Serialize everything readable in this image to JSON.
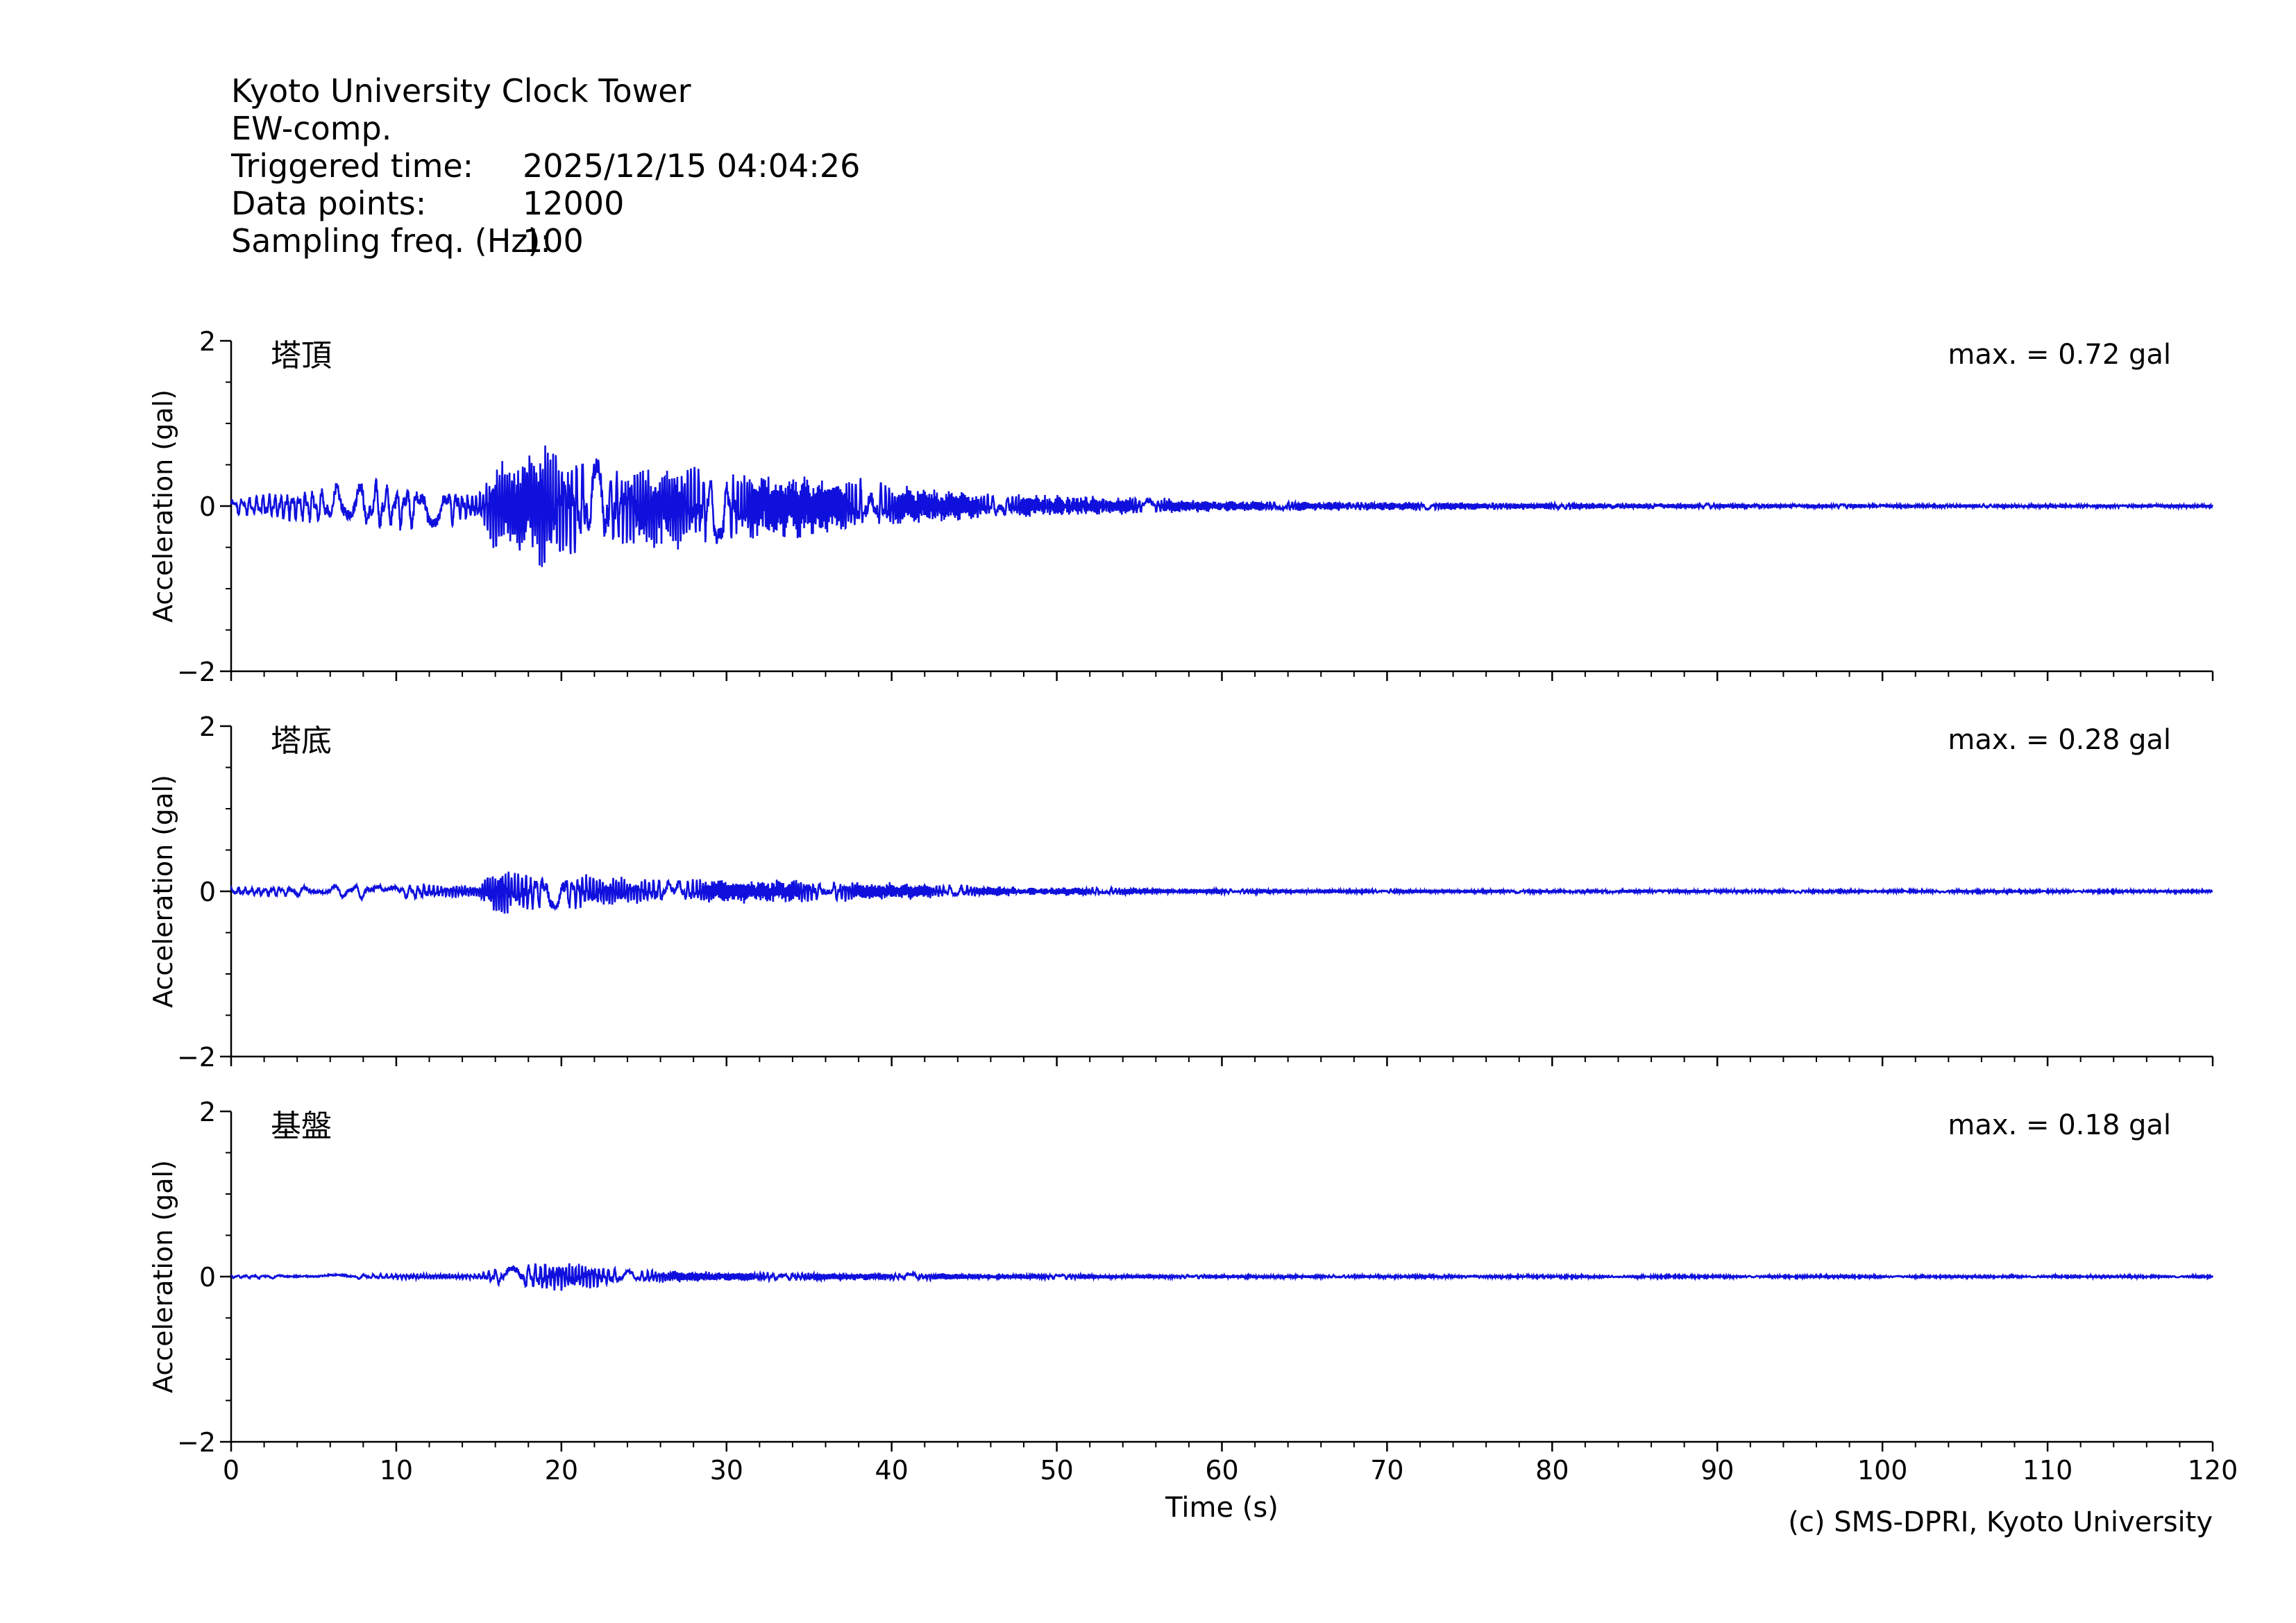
{
  "header": {
    "station": "Kyoto University Clock Tower",
    "component": "EW-comp.",
    "triggered_label": "Triggered time:",
    "triggered_value": "2025/12/15 04:04:26",
    "points_label": "Data points:",
    "points_value": "12000",
    "freq_label": "Sampling freq. (Hz):",
    "freq_value": "100"
  },
  "credit": "(c) SMS-DPRI, Kyoto University",
  "colors": {
    "trace": "#1010dd",
    "axis": "#000000"
  },
  "chart_data": [
    {
      "type": "line",
      "panel_label": "塔頂",
      "max_text": "max. = 0.72 gal",
      "ylabel": "Acceleration (gal)",
      "xlabel": "",
      "xlim": [
        0,
        120
      ],
      "ylim": [
        -2,
        2
      ],
      "x_ticks": [
        0,
        10,
        20,
        30,
        40,
        50,
        60,
        70,
        80,
        90,
        100,
        110,
        120
      ],
      "y_ticks": [
        2,
        0,
        -2
      ],
      "y_tick_labels": [
        "2",
        "0",
        "−2"
      ],
      "envelope": {
        "t": [
          0,
          2,
          5,
          8,
          12,
          15,
          16,
          17,
          19,
          21,
          24,
          27,
          30,
          34,
          37,
          40,
          43,
          46,
          50,
          55,
          60,
          70,
          80,
          90,
          100,
          110,
          120
        ],
        "amp": [
          0.1,
          0.15,
          0.2,
          0.3,
          0.27,
          0.15,
          0.5,
          0.55,
          0.72,
          0.55,
          0.45,
          0.5,
          0.4,
          0.35,
          0.33,
          0.25,
          0.18,
          0.14,
          0.12,
          0.1,
          0.06,
          0.05,
          0.04,
          0.03,
          0.025,
          0.02,
          0.02
        ]
      }
    },
    {
      "type": "line",
      "panel_label": "塔底",
      "max_text": "max. = 0.28 gal",
      "ylabel": "Acceleration (gal)",
      "xlabel": "",
      "xlim": [
        0,
        120
      ],
      "ylim": [
        -2,
        2
      ],
      "x_ticks": [
        0,
        10,
        20,
        30,
        40,
        50,
        60,
        70,
        80,
        90,
        100,
        110,
        120
      ],
      "y_ticks": [
        2,
        0,
        -2
      ],
      "y_tick_labels": [
        "2",
        "0",
        "−2"
      ],
      "envelope": {
        "t": [
          0,
          5,
          8,
          12,
          15,
          16,
          18,
          21,
          24,
          28,
          32,
          36,
          40,
          45,
          50,
          55,
          60,
          70,
          80,
          90,
          100,
          110,
          120
        ],
        "amp": [
          0.04,
          0.07,
          0.1,
          0.09,
          0.06,
          0.28,
          0.22,
          0.2,
          0.15,
          0.14,
          0.13,
          0.12,
          0.1,
          0.06,
          0.05,
          0.04,
          0.03,
          0.025,
          0.02,
          0.02,
          0.015,
          0.015,
          0.01
        ]
      }
    },
    {
      "type": "line",
      "panel_label": "基盤",
      "max_text": "max. = 0.18 gal",
      "ylabel": "Acceleration (gal)",
      "xlabel": "Time (s)",
      "xlim": [
        0,
        120
      ],
      "ylim": [
        -2,
        2
      ],
      "x_ticks": [
        0,
        10,
        20,
        30,
        40,
        50,
        60,
        70,
        80,
        90,
        100,
        110,
        120
      ],
      "x_tick_labels": [
        "0",
        "10",
        "20",
        "30",
        "40",
        "50",
        "60",
        "70",
        "80",
        "90",
        "100",
        "110",
        "120"
      ],
      "y_ticks": [
        2,
        0,
        -2
      ],
      "y_tick_labels": [
        "2",
        "0",
        "−2"
      ],
      "envelope": {
        "t": [
          0,
          10,
          15,
          16,
          19,
          21,
          24,
          30,
          40,
          50,
          60,
          80,
          100,
          120
        ],
        "amp": [
          0.02,
          0.03,
          0.03,
          0.1,
          0.18,
          0.15,
          0.08,
          0.05,
          0.04,
          0.03,
          0.02,
          0.015,
          0.01,
          0.01
        ]
      }
    }
  ]
}
